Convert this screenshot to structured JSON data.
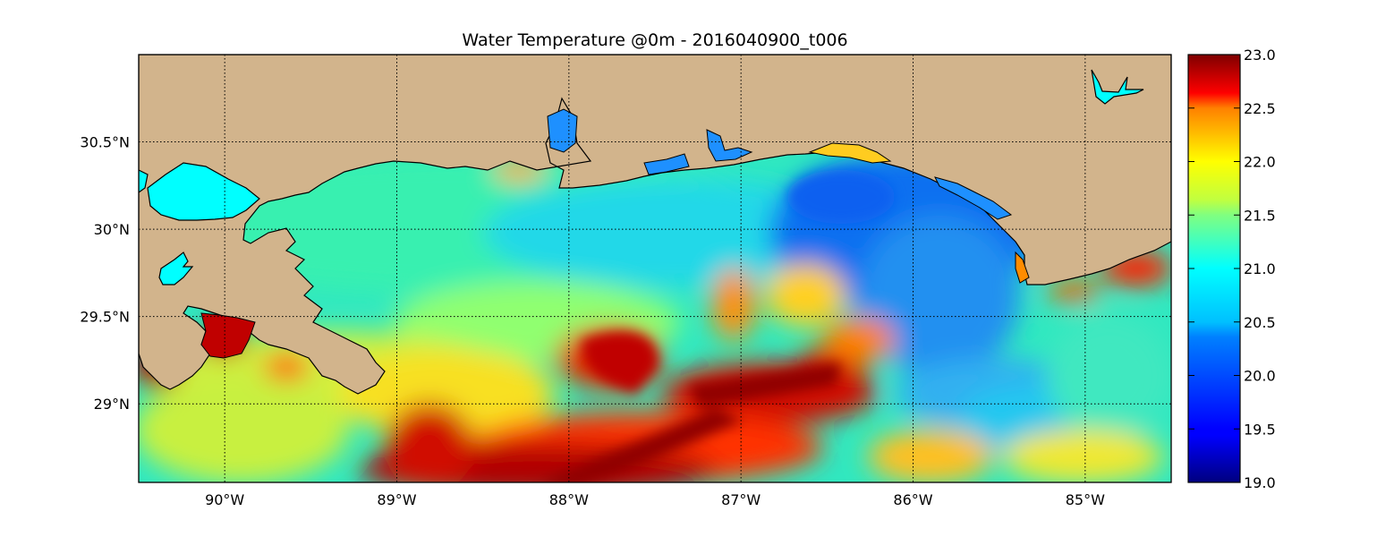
{
  "title": "Water Temperature @0m - 2016040900_t006",
  "map": {
    "lon_range": [
      -90.5,
      -84.5
    ],
    "lat_range": [
      28.55,
      31.0
    ],
    "lon_ticks": [
      {
        "value": -90,
        "label": "90°W"
      },
      {
        "value": -89,
        "label": "89°W"
      },
      {
        "value": -88,
        "label": "88°W"
      },
      {
        "value": -87,
        "label": "87°W"
      },
      {
        "value": -86,
        "label": "86°W"
      },
      {
        "value": -85,
        "label": "85°W"
      }
    ],
    "lat_ticks": [
      {
        "value": 30.5,
        "label": "30.5°N"
      },
      {
        "value": 30.0,
        "label": "30°N"
      },
      {
        "value": 29.5,
        "label": "29.5°N"
      },
      {
        "value": 29.0,
        "label": "29°N"
      }
    ],
    "land_color": "#d2b48c",
    "lake_color": "#00ffff",
    "grid": "dotted"
  },
  "colorbar": {
    "min": 19.0,
    "max": 23.0,
    "colormap": "jet",
    "ticks": [
      "19.0",
      "19.5",
      "20.0",
      "20.5",
      "21.0",
      "21.5",
      "22.0",
      "22.5",
      "23.0"
    ]
  }
}
